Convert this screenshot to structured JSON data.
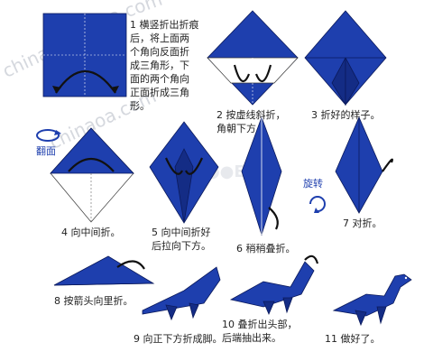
{
  "watermarks": {
    "domain_top": "chinaoa.com",
    "domain_left": "china.oa",
    "domain_mid": "chinaoa.com",
    "center_brand": "pH●●ET"
  },
  "steps": {
    "s1": "1 横竖折出折痕\n后，将上面两\n个角向反面折\n成三角形，下\n面的两个角向\n正面折成三角\n形。",
    "s2": "2 按虚线斜折，\n角朝下方。",
    "s3": "3 折好的样子。",
    "s4": "4 向中间折。",
    "s5": "5 向中间折好\n后拉向下方。",
    "s6": "6 稍稍叠折。",
    "s7": "7 对折。",
    "s8": "8 按箭头向里折。",
    "s9": "9 向正下方折成脚。",
    "s10": "10 叠折出头部，\n后端抽出来。",
    "s11": "11 做好了。"
  },
  "labels": {
    "flip": "翻面",
    "rotate": "旋转"
  },
  "colors": {
    "paper_blue": "#1e3fae",
    "dark_blue": "#142c85",
    "watermark": "#c7cbd3"
  }
}
